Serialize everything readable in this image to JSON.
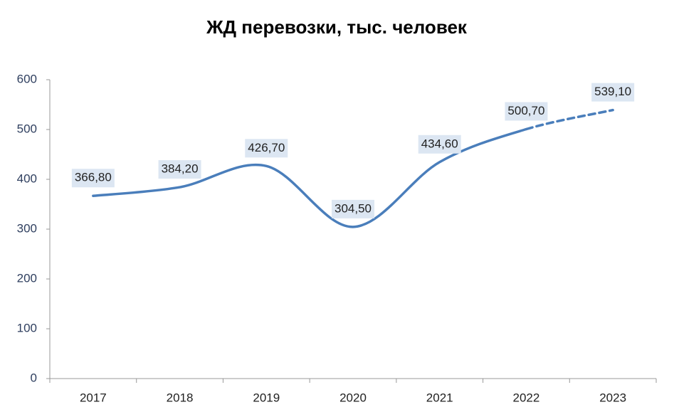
{
  "chart_data": {
    "type": "line",
    "title": "ЖД перевозки, тыс. человек",
    "categories": [
      "2017",
      "2018",
      "2019",
      "2020",
      "2021",
      "2022",
      "2023"
    ],
    "values": [
      366.8,
      384.2,
      426.7,
      304.5,
      434.6,
      500.7,
      539.1
    ],
    "value_labels": [
      "366,80",
      "384,20",
      "426,70",
      "304,50",
      "434,60",
      "500,70",
      "539,10"
    ],
    "dashed": [
      false,
      false,
      false,
      false,
      false,
      false,
      true
    ],
    "color": "#4a7ebb",
    "smooth": true,
    "ylim": [
      0,
      600
    ],
    "yticks": [
      0,
      100,
      200,
      300,
      400,
      500,
      600
    ],
    "grid": false
  }
}
